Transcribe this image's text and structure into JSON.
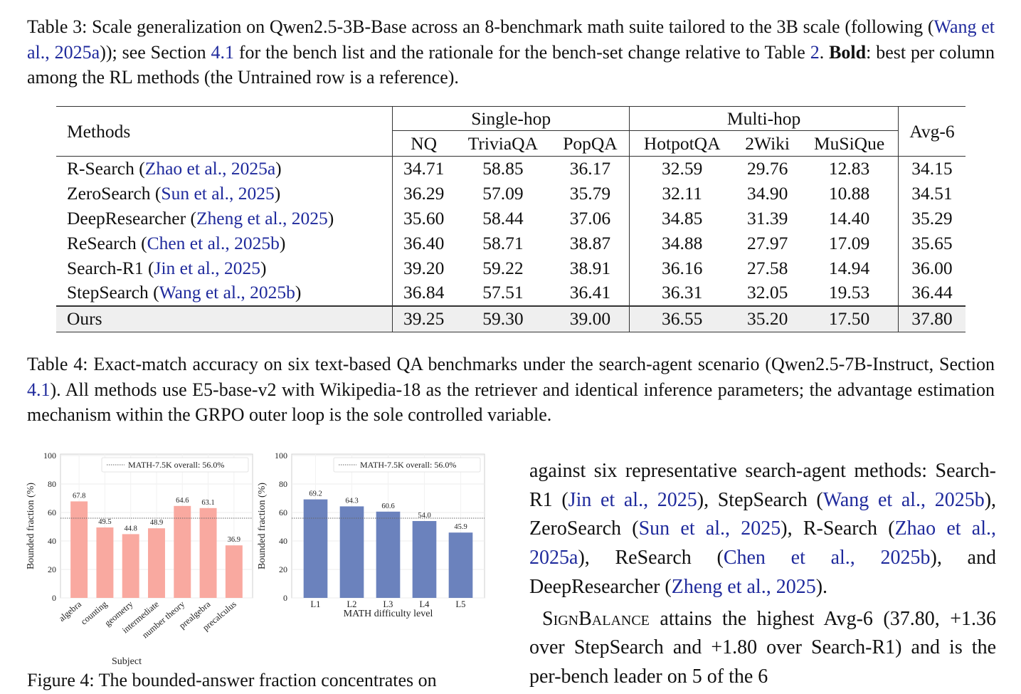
{
  "table3_caption": {
    "label": "Table 3:",
    "t1": "Scale generalization on Qwen2.5-3B-Base across an 8-benchmark math suite tailored to the 3B scale (following (",
    "c1": "Wang et al., 2025a",
    "t2": ")); see Section ",
    "c2": "4.1",
    "t3": " for the bench list and the rationale for the bench-set change relative to Table ",
    "c3": "2",
    "t4": ". ",
    "bold": "Bold",
    "t5": ": best per column among the RL methods (the Untrained row is a reference)."
  },
  "table": {
    "methods_header": "Methods",
    "group_single": "Single-hop",
    "group_multi": "Multi-hop",
    "avg_header": "Avg-6",
    "columns": [
      "NQ",
      "TriviaQA",
      "PopQA",
      "HotpotQA",
      "2Wiki",
      "MuSiQue"
    ],
    "rows": [
      {
        "name": "R-Search",
        "cite": "Zhao et al., 2025a",
        "values": [
          "34.71",
          "58.85",
          "36.17",
          "32.59",
          "29.76",
          "12.83",
          "34.15"
        ]
      },
      {
        "name": "ZeroSearch",
        "cite": "Sun et al., 2025",
        "values": [
          "36.29",
          "57.09",
          "35.79",
          "32.11",
          "34.90",
          "10.88",
          "34.51"
        ]
      },
      {
        "name": "DeepResearcher",
        "cite": "Zheng et al., 2025",
        "values": [
          "35.60",
          "58.44",
          "37.06",
          "34.85",
          "31.39",
          "14.40",
          "35.29"
        ]
      },
      {
        "name": "ReSearch",
        "cite": "Chen et al., 2025b",
        "values": [
          "36.40",
          "58.71",
          "38.87",
          "34.88",
          "27.97",
          "17.09",
          "35.65"
        ]
      },
      {
        "name": "Search-R1",
        "cite": "Jin et al., 2025",
        "values": [
          "39.20",
          "59.22",
          "38.91",
          "36.16",
          "27.58",
          "14.94",
          "36.00"
        ]
      },
      {
        "name": "StepSearch",
        "cite": "Wang et al., 2025b",
        "values": [
          "36.84",
          "57.51",
          "36.41",
          "36.31",
          "32.05",
          "19.53",
          "36.44"
        ]
      }
    ],
    "ours": {
      "name": "Ours",
      "values": [
        "39.25",
        "59.30",
        "39.00",
        "36.55",
        "35.20",
        "17.50",
        "37.80"
      ]
    }
  },
  "table4_caption": {
    "label": "Table 4:",
    "t1": "Exact-match accuracy on six text-based QA benchmarks under the search-agent scenario (Qwen2.5-7B-Instruct, Section ",
    "c1": "4.1",
    "t2": ").  All methods use E5-base-v2 with Wikipedia-18 as the retriever and identical inference parameters; the advantage estimation mechanism within the GRPO outer loop is the sole controlled variable."
  },
  "chart_data": [
    {
      "type": "bar",
      "categories": [
        "algebra",
        "counting",
        "geometry",
        "intermediate",
        "number theory",
        "prealgebra",
        "precalculus"
      ],
      "values": [
        67.8,
        49.5,
        44.8,
        48.9,
        64.6,
        63.1,
        36.9
      ],
      "xlabel": "Subject",
      "ylabel": "Bounded fraction (%)",
      "ylim": [
        0,
        100
      ],
      "yticks": [
        "0",
        "20",
        "40",
        "60",
        "80",
        "100"
      ],
      "reference_line": {
        "value": 56.0,
        "label": "MATH-7.5K overall: 56.0%"
      },
      "legend": "top-right",
      "grid": true,
      "bar_color": "#f9a9a0"
    },
    {
      "type": "bar",
      "categories": [
        "L1",
        "L2",
        "L3",
        "L4",
        "L5"
      ],
      "values": [
        69.2,
        64.3,
        60.6,
        54.0,
        45.9
      ],
      "xlabel": "MATH difficulty level",
      "ylabel": "Bounded fraction (%)",
      "ylim": [
        0,
        100
      ],
      "yticks": [
        "0",
        "20",
        "40",
        "60",
        "80",
        "100"
      ],
      "reference_line": {
        "value": 56.0,
        "label": "MATH-7.5K overall: 56.0%"
      },
      "legend": "top-right",
      "grid": true,
      "bar_color": "#6b82bd"
    }
  ],
  "figure_caption": "Figure 4: The bounded-answer fraction concentrates on",
  "body": {
    "p1_a": "against six representative search-agent methods: Search-R1 (",
    "p1_c1": "Jin et al., 2025",
    "p1_b": "), StepSearch (",
    "p1_c2": "Wang et al., 2025b",
    "p1_c": "), ZeroSearch (",
    "p1_c3": "Sun et al., 2025",
    "p1_d": "), R-Search (",
    "p1_c4": "Zhao et al., 2025a",
    "p1_e": "), ReSearch (",
    "p1_c5": "Chen et al., 2025b",
    "p1_f": "), and DeepResearcher (",
    "p1_c6": "Zheng et al., 2025",
    "p1_g": ").",
    "p2_name": "SignBalance",
    "p2_text": " attains the highest Avg-6 (37.80, +1.36 over StepSearch and +1.80 over Search-R1) and is the per-bench leader on 5 of the 6"
  }
}
